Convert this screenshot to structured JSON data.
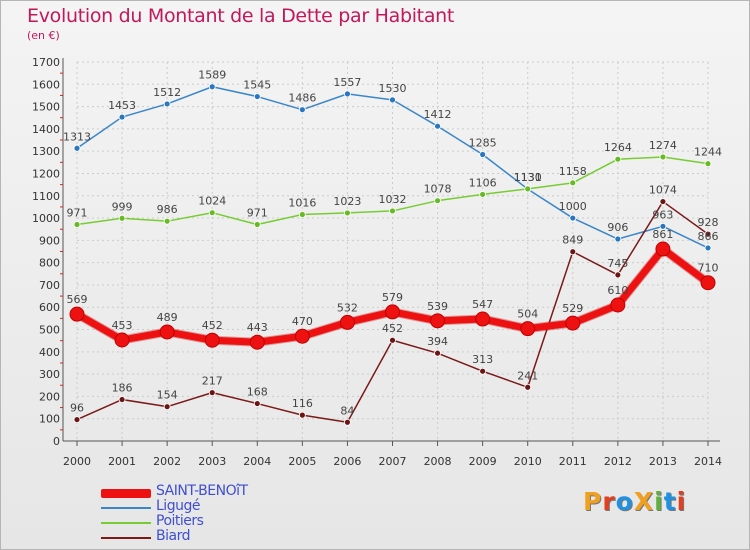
{
  "title": "Evolution du Montant de la Dette par Habitant",
  "subtitle": "(en €)",
  "logo_text": "ProXiti",
  "logo_colors": [
    "#f0a020",
    "#e04020",
    "#2090e0",
    "#f0a020",
    "#60b040",
    "#2090e0",
    "#e04020"
  ],
  "chart_data": {
    "type": "line",
    "x": [
      2000,
      2001,
      2002,
      2003,
      2004,
      2005,
      2006,
      2007,
      2008,
      2009,
      2010,
      2011,
      2012,
      2013,
      2014
    ],
    "ylim": [
      0,
      1700
    ],
    "yticks": [
      0,
      100,
      200,
      300,
      400,
      500,
      600,
      700,
      800,
      900,
      1000,
      1100,
      1200,
      1300,
      1400,
      1500,
      1600,
      1700
    ],
    "grid": true,
    "legend_position": "bottom-left",
    "series": [
      {
        "name": "SAINT-BENOîT",
        "color": "#ee1111",
        "values": [
          569,
          453,
          489,
          452,
          443,
          470,
          532,
          579,
          539,
          547,
          504,
          529,
          610,
          861,
          710
        ],
        "labels": [
          "569",
          "453",
          "489",
          "452",
          "443",
          "470",
          "532",
          "579",
          "539",
          "547",
          "504",
          "529",
          "610",
          "861",
          "710"
        ]
      },
      {
        "name": "Ligugé",
        "color": "#3a86c8",
        "values": [
          1313,
          1453,
          1512,
          1589,
          1545,
          1486,
          1557,
          1530,
          1412,
          1285,
          1130,
          1000,
          906,
          963,
          866
        ],
        "labels": [
          "1313",
          "1453",
          "1512",
          "1589",
          "1545",
          "1486",
          "1557",
          "1530",
          "1412",
          "1285",
          "1130",
          "1000",
          "906",
          "963",
          "866"
        ]
      },
      {
        "name": "Poitiers",
        "color": "#77cc33",
        "values": [
          971,
          999,
          986,
          1024,
          971,
          1016,
          1023,
          1032,
          1078,
          1106,
          1131,
          1158,
          1264,
          1274,
          1244
        ],
        "labels": [
          "971",
          "999",
          "986",
          "1024",
          "971",
          "1016",
          "1023",
          "1032",
          "1078",
          "1106",
          "1131",
          "1158",
          "1264",
          "1274",
          "1244"
        ]
      },
      {
        "name": "Biard",
        "color": "#7a1a1a",
        "values": [
          96,
          186,
          154,
          217,
          168,
          116,
          84,
          452,
          394,
          313,
          241,
          849,
          745,
          1074,
          928
        ],
        "labels": [
          "96",
          "186",
          "154",
          "217",
          "168",
          "116",
          "84",
          "452",
          "394",
          "313",
          "241",
          "849",
          "745",
          "1074",
          "928"
        ]
      }
    ]
  }
}
